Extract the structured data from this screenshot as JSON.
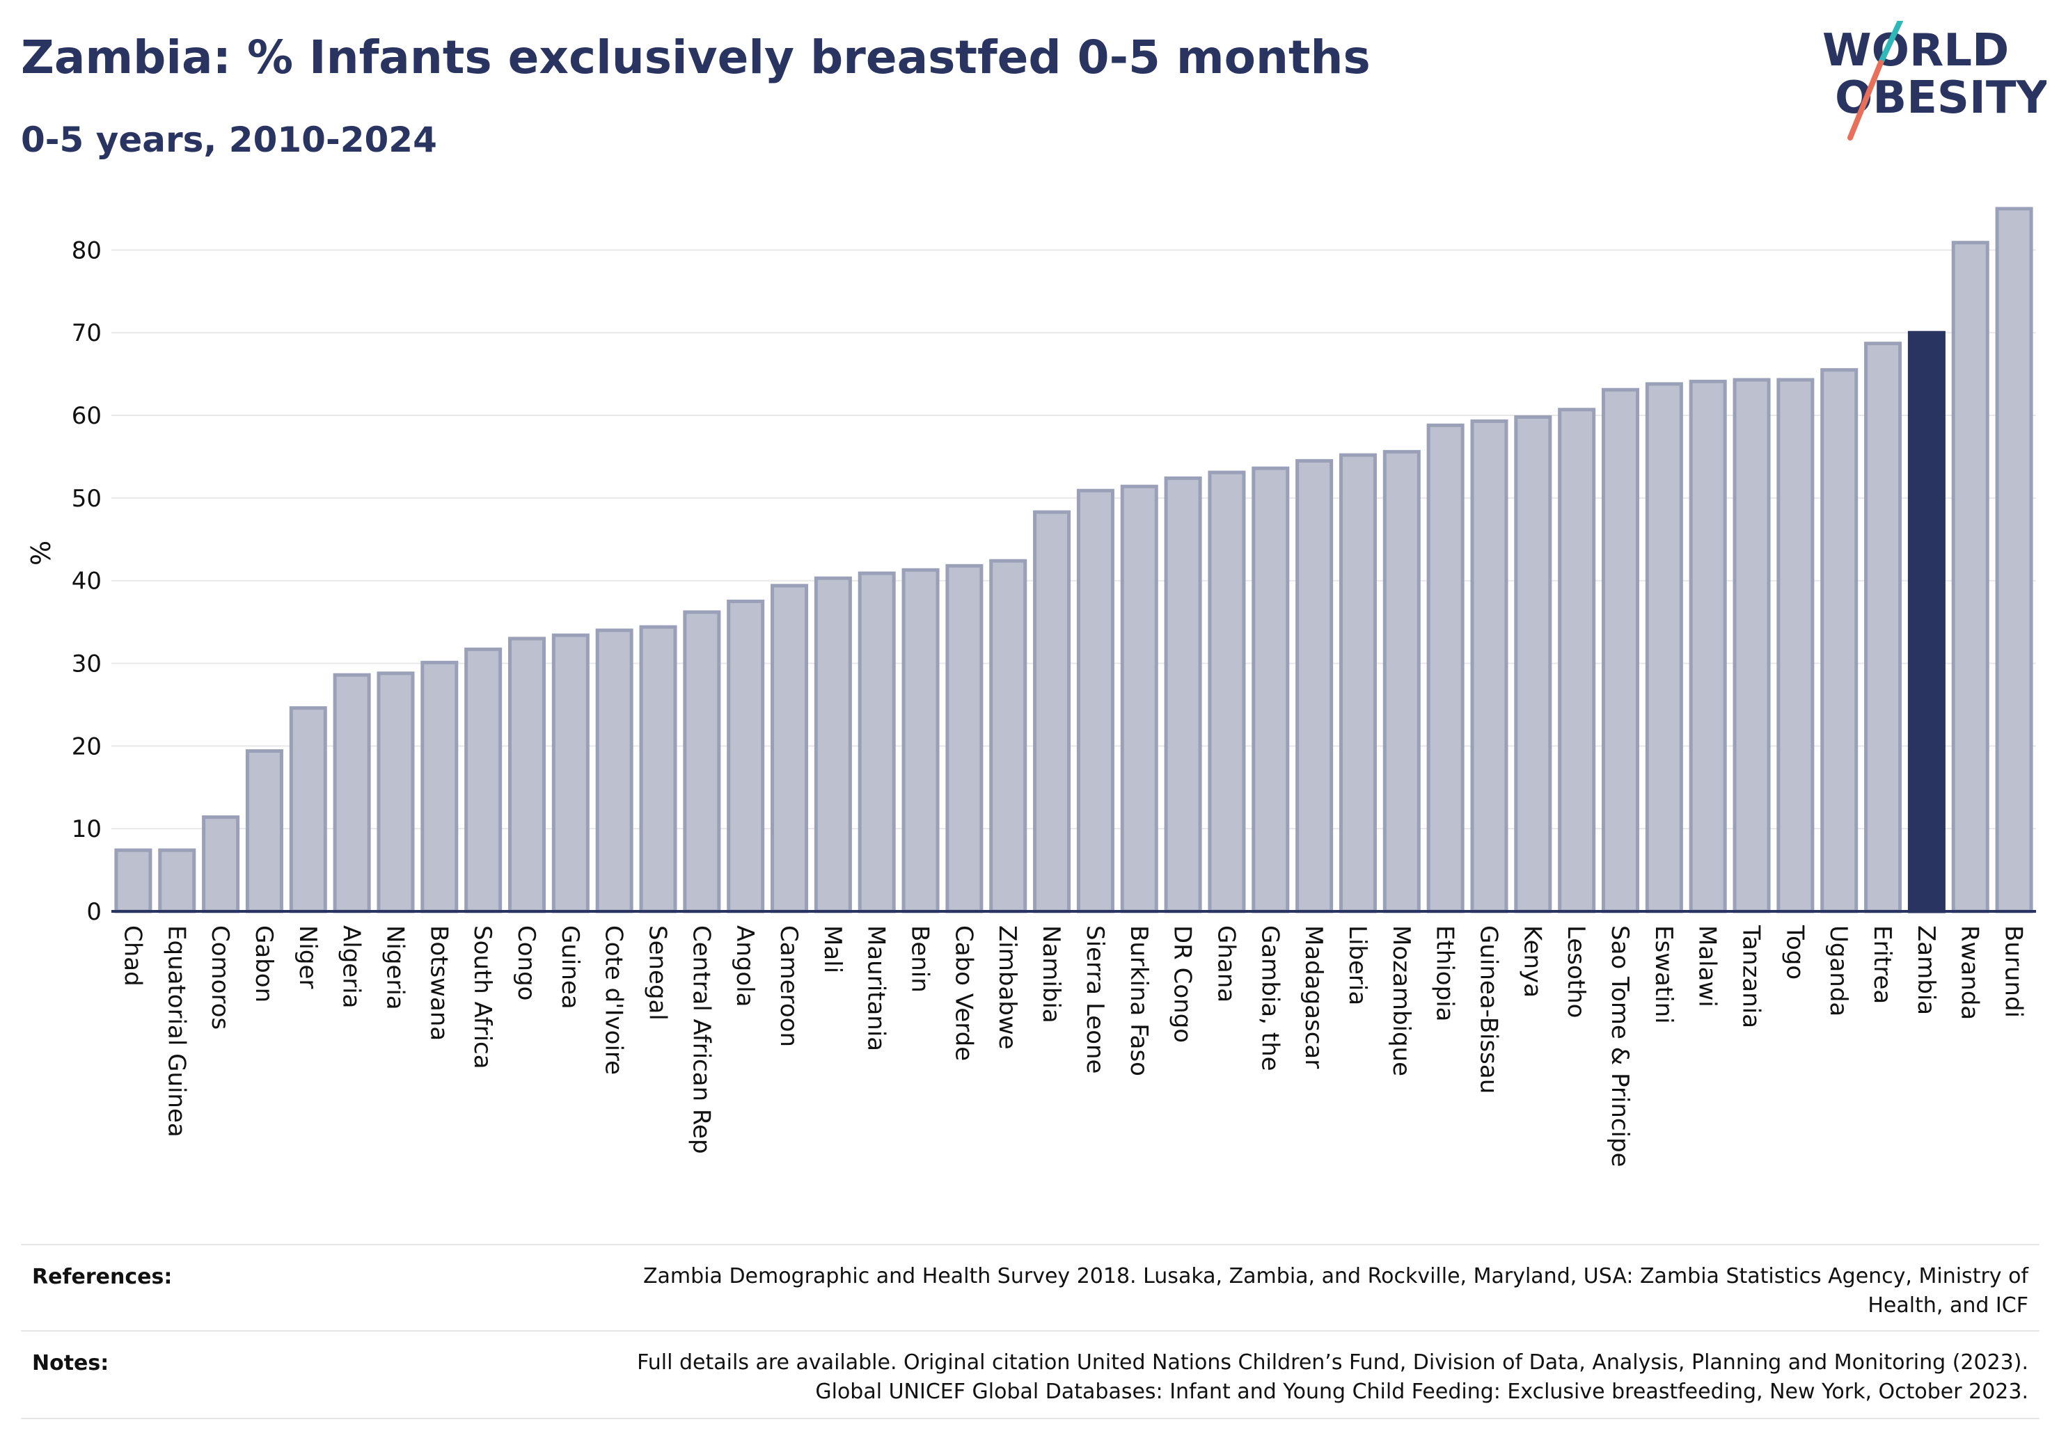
{
  "header": {
    "title": "Zambia: % Infants exclusively breastfed 0-5 months",
    "subtitle": "0-5 years, 2010-2024"
  },
  "logo": {
    "line1": "WORLD",
    "line2": "OBESITY",
    "accent1": "#2fb8b8",
    "accent2": "#e8705a"
  },
  "chart_data": {
    "type": "bar",
    "ylabel": "%",
    "xlabel": "",
    "ylim": [
      0,
      85
    ],
    "yticks": [
      0,
      10,
      20,
      30,
      40,
      50,
      60,
      70,
      80
    ],
    "grid": true,
    "highlight": "Zambia",
    "bar_color": "#bcc0cf",
    "bar_edge_color": "#9aa0b8",
    "highlight_color": "#2a3460",
    "categories": [
      "Chad",
      "Equatorial Guinea",
      "Comoros",
      "Gabon",
      "Niger",
      "Algeria",
      "Nigeria",
      "Botswana",
      "South Africa",
      "Congo",
      "Guinea",
      "Cote d'Ivoire",
      "Senegal",
      "Central African Rep",
      "Angola",
      "Cameroon",
      "Mali",
      "Mauritania",
      "Benin",
      "Cabo Verde",
      "Zimbabwe",
      "Namibia",
      "Sierra Leone",
      "Burkina Faso",
      "DR Congo",
      "Ghana",
      "Gambia, the",
      "Madagascar",
      "Liberia",
      "Mozambique",
      "Ethiopia",
      "Guinea-Bissau",
      "Kenya",
      "Lesotho",
      "Sao Tome & Principe",
      "Eswatini",
      "Malawi",
      "Tanzania",
      "Togo",
      "Uganda",
      "Eritrea",
      "Zambia",
      "Rwanda",
      "Burundi"
    ],
    "values": [
      7.4,
      7.4,
      11.4,
      19.4,
      24.6,
      28.6,
      28.8,
      30.1,
      31.7,
      33.0,
      33.4,
      34.0,
      34.4,
      36.2,
      37.5,
      39.4,
      40.3,
      40.9,
      41.3,
      41.8,
      42.4,
      48.3,
      50.9,
      51.4,
      52.4,
      53.1,
      53.6,
      54.5,
      55.2,
      55.6,
      58.8,
      59.3,
      59.8,
      60.7,
      63.1,
      63.8,
      64.1,
      64.3,
      64.3,
      65.5,
      68.7,
      70.0,
      80.9,
      85.0
    ]
  },
  "footer": {
    "references_label": "References:",
    "references_text": "Zambia Demographic and Health Survey 2018. Lusaka, Zambia, and Rockville, Maryland, USA: Zambia Statistics Agency, Ministry of Health, and ICF",
    "notes_label": "Notes:",
    "notes_text": "Full details are available. Original citation United Nations Children’s Fund, Division of Data, Analysis, Planning and Monitoring (2023). Global UNICEF Global Databases: Infant and Young Child Feeding: Exclusive breastfeeding, New York, October 2023."
  }
}
